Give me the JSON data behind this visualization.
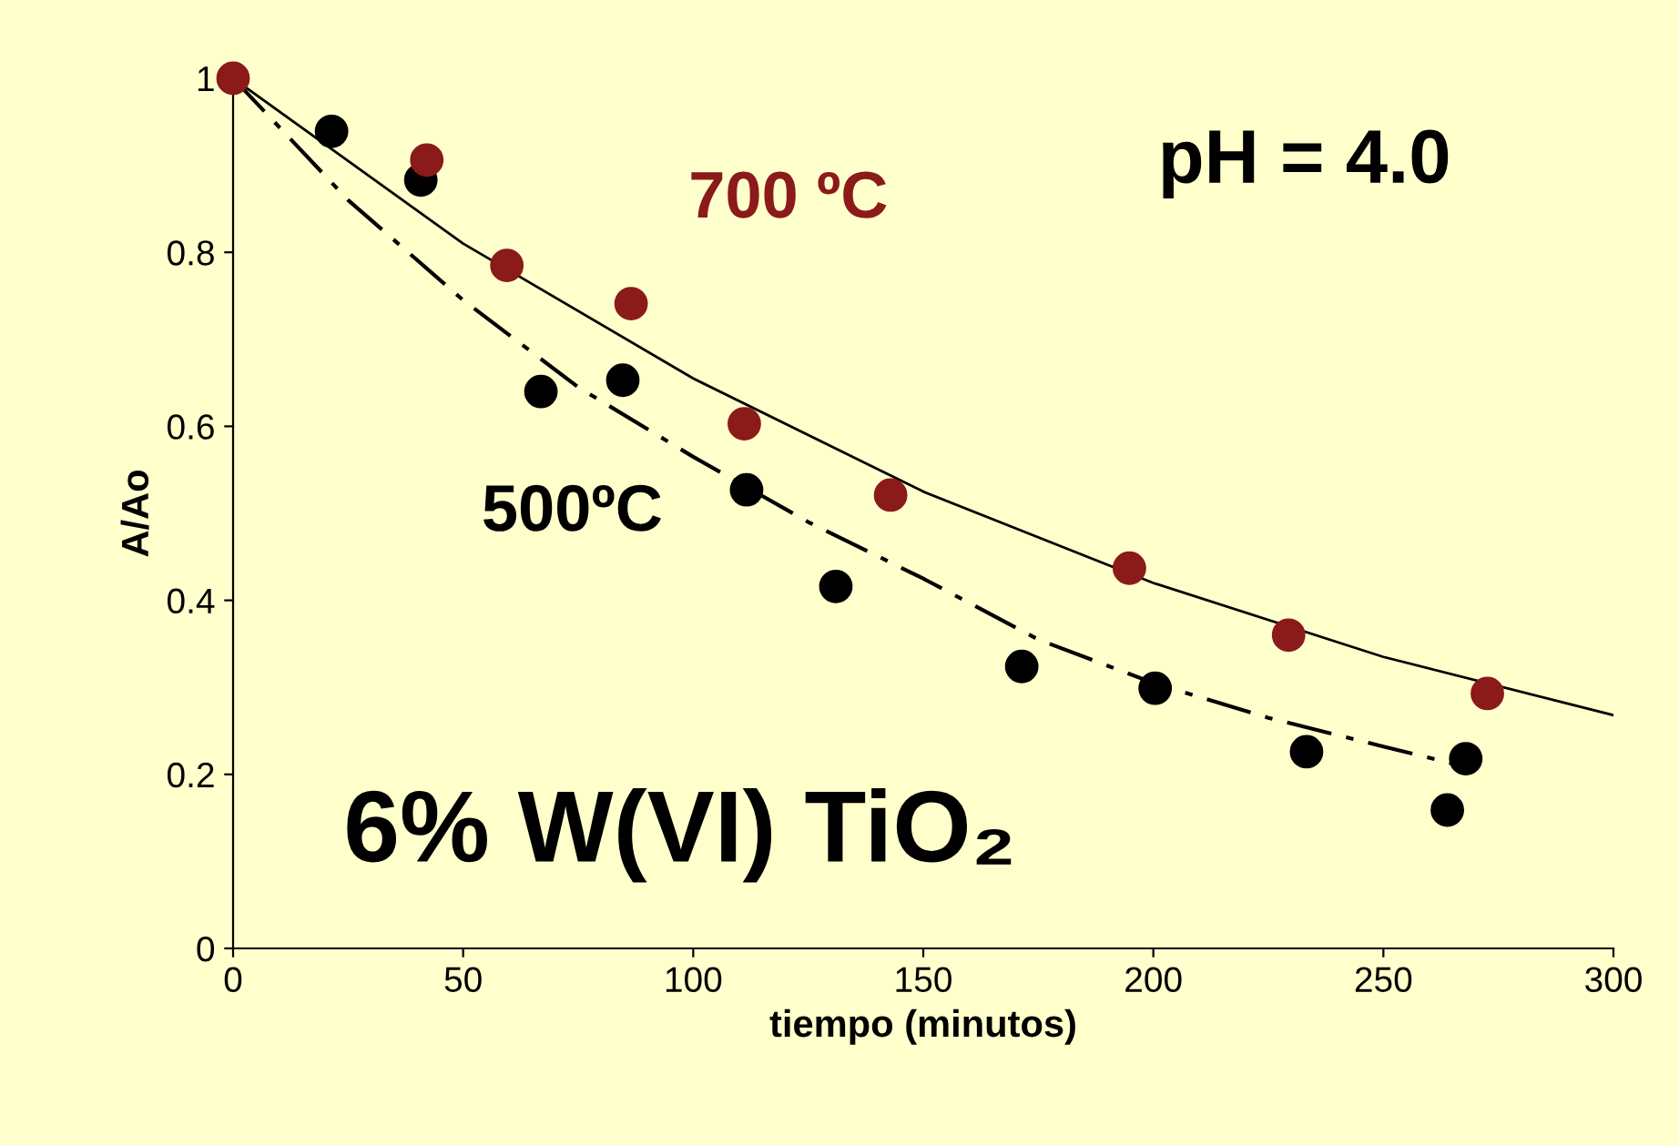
{
  "chart_data": {
    "type": "scatter",
    "xlabel": "tiempo (minutos)",
    "ylabel": "A/Ao",
    "xlim": [
      0,
      300
    ],
    "ylim": [
      0,
      1
    ],
    "xticks": [
      0,
      50,
      100,
      150,
      200,
      250,
      300
    ],
    "yticks": [
      0,
      0.2,
      0.4,
      0.6,
      0.8,
      1
    ],
    "grid": false,
    "marker": "circle",
    "series": [
      {
        "name": "500ºC",
        "color": "#000000",
        "x": [
          21.4,
          40.8,
          66.9,
          84.7,
          111.6,
          131,
          171.4,
          200.4,
          233.3,
          263.9,
          267.9
        ],
        "values": [
          0.939,
          0.883,
          0.64,
          0.653,
          0.527,
          0.416,
          0.324,
          0.299,
          0.226,
          0.159,
          0.218
        ]
      },
      {
        "name": "700 ºC",
        "color": "#8b1a1a",
        "x": [
          0,
          42.1,
          59.5,
          86.5,
          111.1,
          142.9,
          194.8,
          229.4,
          272.6
        ],
        "values": [
          1,
          0.906,
          0.785,
          0.741,
          0.603,
          0.521,
          0.437,
          0.36,
          0.293
        ]
      },
      {
        "type": "line",
        "color": "#000000",
        "line_style": "dashdot",
        "marker": "none",
        "x": [
          0,
          25,
          50,
          75,
          100,
          125,
          150,
          175,
          200,
          225,
          250,
          267
        ],
        "values": [
          1,
          0.86,
          0.745,
          0.645,
          0.565,
          0.49,
          0.425,
          0.355,
          0.305,
          0.265,
          0.232,
          0.21
        ]
      },
      {
        "type": "line",
        "color": "#000000",
        "line_style": "solid",
        "marker": "none",
        "x": [
          0,
          50,
          100,
          150,
          200,
          250,
          300
        ],
        "values": [
          1,
          0.81,
          0.655,
          0.525,
          0.42,
          0.335,
          0.268
        ]
      }
    ],
    "annotations": [
      "pH = 4.0",
      "6% W(VI) TiO₂"
    ]
  }
}
